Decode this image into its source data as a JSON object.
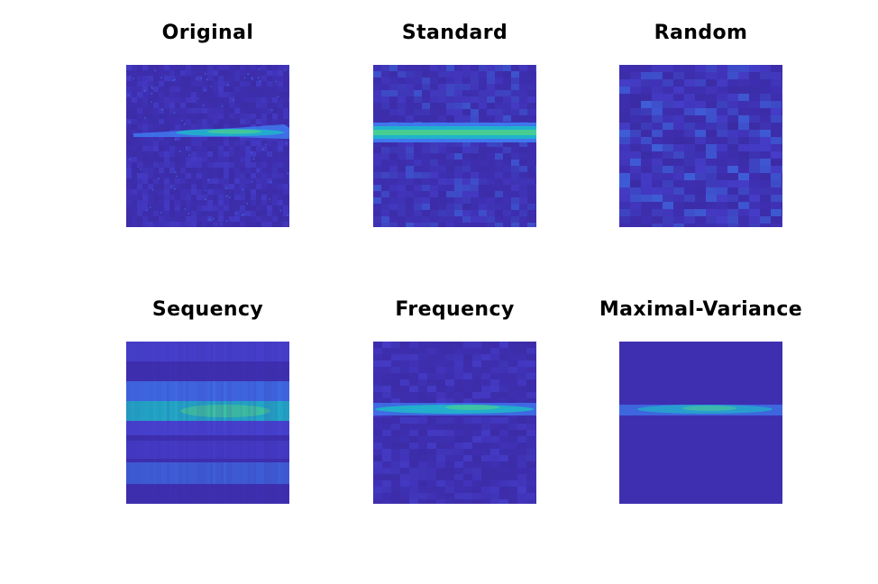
{
  "figure": {
    "panels": [
      {
        "title": "Original",
        "kind": "original"
      },
      {
        "title": "Standard",
        "kind": "standard"
      },
      {
        "title": "Random",
        "kind": "random"
      },
      {
        "title": "Sequency",
        "kind": "sequency"
      },
      {
        "title": "Frequency",
        "kind": "frequency"
      },
      {
        "title": "Maximal-Variance",
        "kind": "maxvar"
      }
    ]
  },
  "colors": {
    "base": "#3e2fb0",
    "dark": "#3a2a9f",
    "mid": "#4a46d8",
    "light": "#3f7ef2",
    "cyan": "#1fb6c9",
    "green": "#4fd28a"
  }
}
